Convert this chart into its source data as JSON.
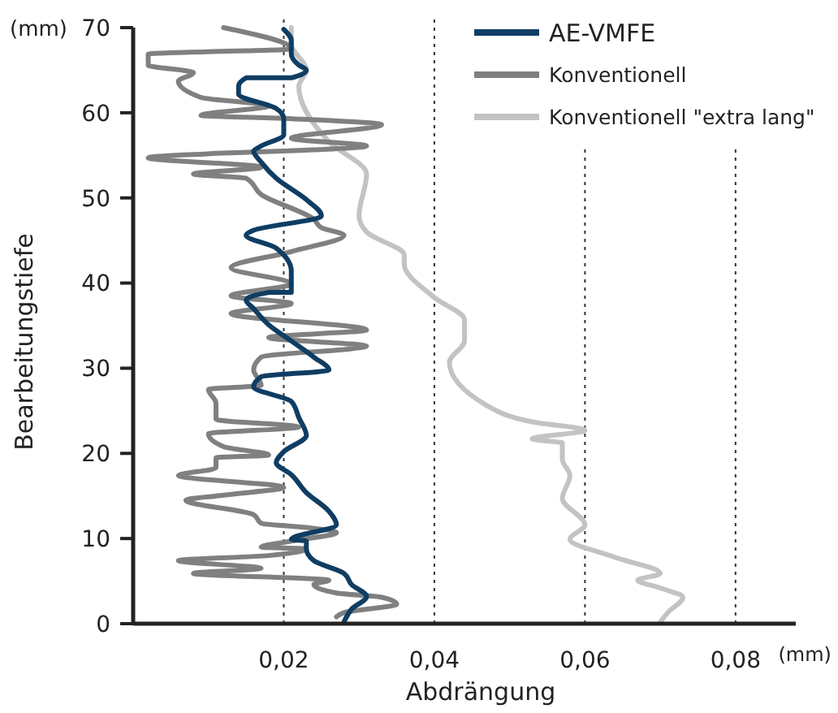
{
  "chart_data": {
    "type": "line",
    "orientation": "horizontal",
    "xlabel": "Abdrängung",
    "ylabel": "Bearbeitungstiefe",
    "annotations": [
      "(mm)",
      "(mm)"
    ],
    "xlim": [
      0,
      0.088
    ],
    "xticks": [
      {
        "value": 0.02,
        "label": "0,02"
      },
      {
        "value": 0.04,
        "label": "0,04"
      },
      {
        "value": 0.06,
        "label": "0,06"
      },
      {
        "value": 0.08,
        "label": "0,08"
      }
    ],
    "ylim": [
      0,
      70
    ],
    "yticks": [
      0,
      10,
      20,
      30,
      40,
      50,
      60,
      70
    ],
    "grid": "x",
    "legend": "top right",
    "series": [
      {
        "name": "AE-VMFE",
        "color": "#0f3d63",
        "x": [
          0.2,
          1.7,
          3.2,
          4.6,
          5.9,
          7.4,
          8.8,
          9.7,
          9.9,
          11.6,
          13.2,
          15.4,
          17.5,
          18.9,
          20.2,
          22.1,
          24.2,
          26.1,
          27.8,
          29.0,
          29.8,
          31.3,
          33.2,
          35.1,
          37.0,
          38.0,
          38.9,
          38.9,
          41.4,
          44.1,
          45.6,
          46.2,
          47.9,
          49.8,
          52.3,
          54.2,
          55.5,
          56.1,
          57.4,
          59.3,
          60.5,
          62.2,
          63.1,
          64.1,
          64.1,
          65.0,
          65.6,
          66.9,
          68.5,
          69.8
        ],
        "values": [
          0.028,
          0.029,
          0.031,
          0.029,
          0.028,
          0.024,
          0.023,
          0.023,
          0.021,
          0.027,
          0.026,
          0.023,
          0.021,
          0.019,
          0.02,
          0.023,
          0.022,
          0.021,
          0.016,
          0.017,
          0.026,
          0.024,
          0.021,
          0.018,
          0.016,
          0.015,
          0.018,
          0.021,
          0.021,
          0.019,
          0.015,
          0.016,
          0.025,
          0.023,
          0.019,
          0.017,
          0.016,
          0.017,
          0.02,
          0.02,
          0.019,
          0.014,
          0.014,
          0.015,
          0.021,
          0.023,
          0.022,
          0.021,
          0.021,
          0.02
        ]
      },
      {
        "name": "Konventionell",
        "color": "#808080",
        "x": [
          0.8,
          1.3,
          2.3,
          3.1,
          3.6,
          4.6,
          5.1,
          5.9,
          6.5,
          7.4,
          8.0,
          8.8,
          9.0,
          9.7,
          10.7,
          11.3,
          11.8,
          12.8,
          14.5,
          15.1,
          16.0,
          17.4,
          18.3,
          19.5,
          19.8,
          20.8,
          22.3,
          23.1,
          24.0,
          25.9,
          27.5,
          28.0,
          29.8,
          31.3,
          32.6,
          33.6,
          34.5,
          36.4,
          37.6,
          38.5,
          39.9,
          41.8,
          43.7,
          45.6,
          46.5,
          47.5,
          50.4,
          52.3,
          52.8,
          53.6,
          54.7,
          56.1,
          57.0,
          58.6,
          59.3,
          59.7,
          60.8,
          61.8,
          63.7,
          64.7,
          65.6,
          66.9,
          67.5,
          70.0
        ],
        "values": [
          0.027,
          0.028,
          0.035,
          0.033,
          0.027,
          0.024,
          0.026,
          0.008,
          0.017,
          0.006,
          0.018,
          0.023,
          0.017,
          0.021,
          0.027,
          0.023,
          0.017,
          0.016,
          0.007,
          0.012,
          0.02,
          0.006,
          0.011,
          0.011,
          0.018,
          0.012,
          0.01,
          0.022,
          0.011,
          0.011,
          0.01,
          0.017,
          0.016,
          0.017,
          0.031,
          0.018,
          0.031,
          0.013,
          0.021,
          0.013,
          0.021,
          0.013,
          0.021,
          0.028,
          0.025,
          0.024,
          0.017,
          0.015,
          0.008,
          0.017,
          0.002,
          0.031,
          0.021,
          0.033,
          0.021,
          0.009,
          0.018,
          0.009,
          0.006,
          0.008,
          0.002,
          0.002,
          0.021,
          0.012
        ]
      },
      {
        "name": "Konventionell \"extra lang\"",
        "color": "#c3c3c3",
        "x": [
          0.2,
          1.3,
          3.1,
          4.2,
          5.1,
          5.9,
          7.8,
          9.9,
          11.6,
          14.7,
          17.4,
          19.3,
          21.2,
          21.7,
          22.7,
          23.7,
          25.6,
          30.7,
          33.2,
          35.7,
          38.3,
          42.2,
          43.3,
          46.0,
          47.9,
          52.8,
          56.6,
          63.1,
          65.0,
          68.1,
          70.0
        ],
        "values": [
          0.07,
          0.071,
          0.073,
          0.07,
          0.067,
          0.07,
          0.064,
          0.058,
          0.06,
          0.057,
          0.058,
          0.057,
          0.057,
          0.053,
          0.06,
          0.053,
          0.047,
          0.042,
          0.044,
          0.044,
          0.04,
          0.036,
          0.036,
          0.031,
          0.03,
          0.031,
          0.026,
          0.022,
          0.023,
          0.021,
          0.021
        ]
      }
    ]
  }
}
